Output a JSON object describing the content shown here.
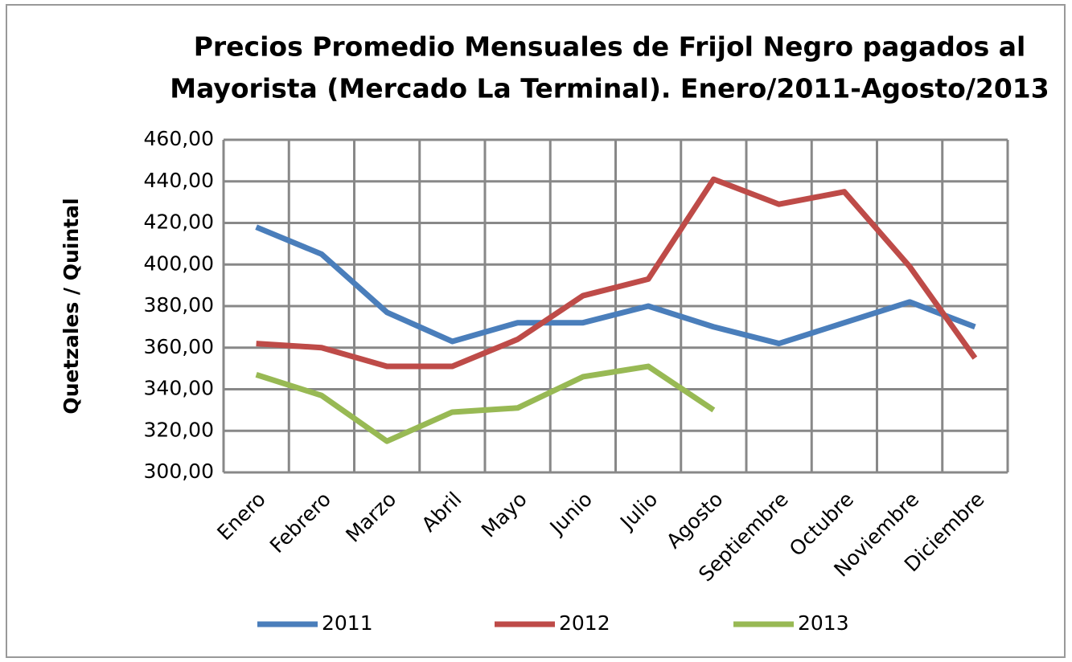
{
  "chart_data": {
    "type": "line",
    "title": [
      "Precios Promedio Mensuales de Frijol Negro pagados al",
      "Mayorista (Mercado La Terminal). Enero/2011-Agosto/2013"
    ],
    "y_label": "Quetzales  / Quintal",
    "categories": [
      "Enero",
      "Febrero",
      "Marzo",
      "Abril",
      "Mayo",
      "Junio",
      "Julio",
      "Agosto",
      "Septiembre",
      "Octubre",
      "Noviembre",
      "Diciembre"
    ],
    "series": [
      {
        "name": "2011",
        "color": "#4a7ebb",
        "values": [
          418,
          405,
          377,
          363,
          372,
          372,
          380,
          370,
          362,
          372,
          382,
          370
        ]
      },
      {
        "name": "2012",
        "color": "#be4b48",
        "values": [
          362,
          360,
          351,
          351,
          364,
          385,
          393,
          441,
          429,
          435,
          399,
          355
        ]
      },
      {
        "name": "2013",
        "color": "#98b954",
        "values": [
          347,
          337,
          315,
          329,
          331,
          346,
          351,
          330,
          null,
          null,
          null,
          null
        ]
      }
    ],
    "ylim": [
      300,
      460
    ],
    "yticks": [
      {
        "value": 300,
        "label": "300,00"
      },
      {
        "value": 320,
        "label": "320,00"
      },
      {
        "value": 340,
        "label": "340,00"
      },
      {
        "value": 360,
        "label": "360,00"
      },
      {
        "value": 380,
        "label": "380,00"
      },
      {
        "value": 400,
        "label": "400,00"
      },
      {
        "value": 420,
        "label": "420,00"
      },
      {
        "value": 440,
        "label": "440,00"
      },
      {
        "value": 460,
        "label": "460,00"
      }
    ],
    "grid": true,
    "legend": "bottom"
  }
}
